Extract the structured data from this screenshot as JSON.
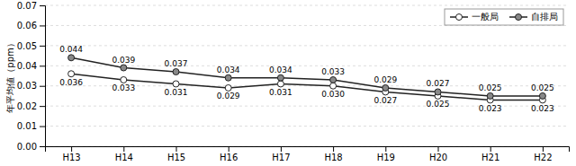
{
  "chart_data": {
    "type": "line",
    "y_label": "年平均値（ppm）",
    "categories": [
      "H13",
      "H14",
      "H15",
      "H16",
      "H17",
      "H18",
      "H19",
      "H20",
      "H21",
      "H22"
    ],
    "series": [
      {
        "name": "一般局",
        "color": "#222222",
        "marker": "open-circle",
        "values": [
          0.036,
          0.033,
          0.031,
          0.029,
          0.031,
          0.03,
          0.027,
          0.025,
          0.023,
          0.023
        ],
        "value_labels": [
          "0.036",
          "0.033",
          "0.031",
          "0.029",
          "0.031",
          "0.030",
          "0.027",
          "0.025",
          "0.023",
          "0.023"
        ]
      },
      {
        "name": "自排局",
        "color": "#222222",
        "marker": "filled-circle",
        "values": [
          0.044,
          0.039,
          0.037,
          0.034,
          0.034,
          0.033,
          0.029,
          0.027,
          0.025,
          0.025
        ],
        "value_labels": [
          "0.044",
          "0.039",
          "0.037",
          "0.034",
          "0.034",
          "0.033",
          "0.029",
          "0.027",
          "0.025",
          "0.025"
        ]
      }
    ],
    "ylim": [
      0.0,
      0.07
    ],
    "yticks": [
      {
        "value": 0.0,
        "label": "0.00"
      },
      {
        "value": 0.01,
        "label": "0.01"
      },
      {
        "value": 0.02,
        "label": "0.02"
      },
      {
        "value": 0.03,
        "label": "0.03"
      },
      {
        "value": 0.04,
        "label": "0.04"
      },
      {
        "value": 0.05,
        "label": "0.05"
      },
      {
        "value": 0.06,
        "label": "0.06"
      },
      {
        "value": 0.07,
        "label": "0.07"
      }
    ],
    "grid": true,
    "legend": "top-right",
    "data_labels": true
  }
}
